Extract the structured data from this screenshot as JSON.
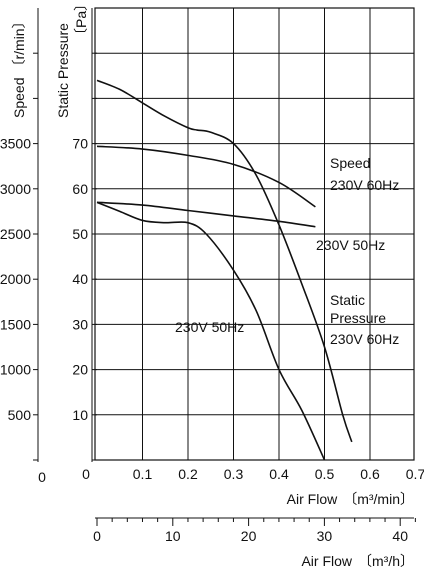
{
  "chart_data": {
    "type": "line",
    "title": "",
    "axes": {
      "speed_axis": {
        "title": "Speed",
        "unit": "〔r/min〕",
        "ticks": [
          "3500",
          "3000",
          "2500",
          "2000",
          "1500",
          "1000",
          "500",
          "0"
        ]
      },
      "pressure_axis": {
        "title": "Static Pressure",
        "unit": "〔Pa〕",
        "ticks": [
          "70",
          "60",
          "50",
          "40",
          "30",
          "20",
          "10",
          "0"
        ]
      },
      "x_axis_m3min": {
        "title": "Air Flow",
        "unit": "〔m³/min〕",
        "ticks": [
          "0",
          "0.1",
          "0.2",
          "0.3",
          "0.4",
          "0.5",
          "0.6",
          "0.7"
        ],
        "range": [
          0,
          0.7
        ]
      },
      "x_axis_m3h": {
        "title": "Air Flow",
        "unit": "〔m³/h〕",
        "ticks": [
          "0",
          "10",
          "20",
          "30",
          "40"
        ],
        "range": [
          0,
          42
        ]
      }
    },
    "ylim_pressure": [
      0,
      90
    ],
    "ylim_speed": [
      0,
      4500
    ],
    "grid": true,
    "series": [
      {
        "name": "Speed 230V 60Hz",
        "axis": "speed",
        "x": [
          0.0,
          0.1,
          0.2,
          0.3,
          0.4,
          0.48
        ],
        "y": [
          3470,
          3440,
          3370,
          3270,
          3070,
          2800
        ]
      },
      {
        "name": "Speed 230V 50Hz",
        "axis": "speed",
        "x": [
          0.0,
          0.1,
          0.2,
          0.3,
          0.4,
          0.48
        ],
        "y": [
          2850,
          2820,
          2760,
          2700,
          2640,
          2580
        ]
      },
      {
        "name": "Static Pressure 230V 60Hz",
        "axis": "pressure",
        "x": [
          0.0,
          0.05,
          0.1,
          0.15,
          0.2,
          0.22,
          0.25,
          0.3,
          0.35,
          0.4,
          0.45,
          0.5,
          0.54,
          0.56
        ],
        "y": [
          84,
          82,
          79,
          76,
          73.5,
          73,
          72.5,
          70,
          63,
          52,
          39,
          25,
          10,
          4
        ]
      },
      {
        "name": "Static Pressure 230V 50Hz",
        "axis": "pressure",
        "x": [
          0.0,
          0.05,
          0.1,
          0.15,
          0.2,
          0.24,
          0.3,
          0.35,
          0.4,
          0.45,
          0.5
        ],
        "y": [
          57,
          55,
          53,
          52.5,
          52.5,
          50,
          42,
          33,
          20,
          11,
          0
        ]
      }
    ],
    "annotations": {
      "speed": "Speed",
      "speed_60hz": "230V 60Hz",
      "speed_50hz": "230V 50Hz",
      "sp_static": "Static",
      "sp_pressure": "Pressure",
      "sp_60hz": "230V 60Hz",
      "sp_50hz": "230V 50Hz"
    }
  }
}
